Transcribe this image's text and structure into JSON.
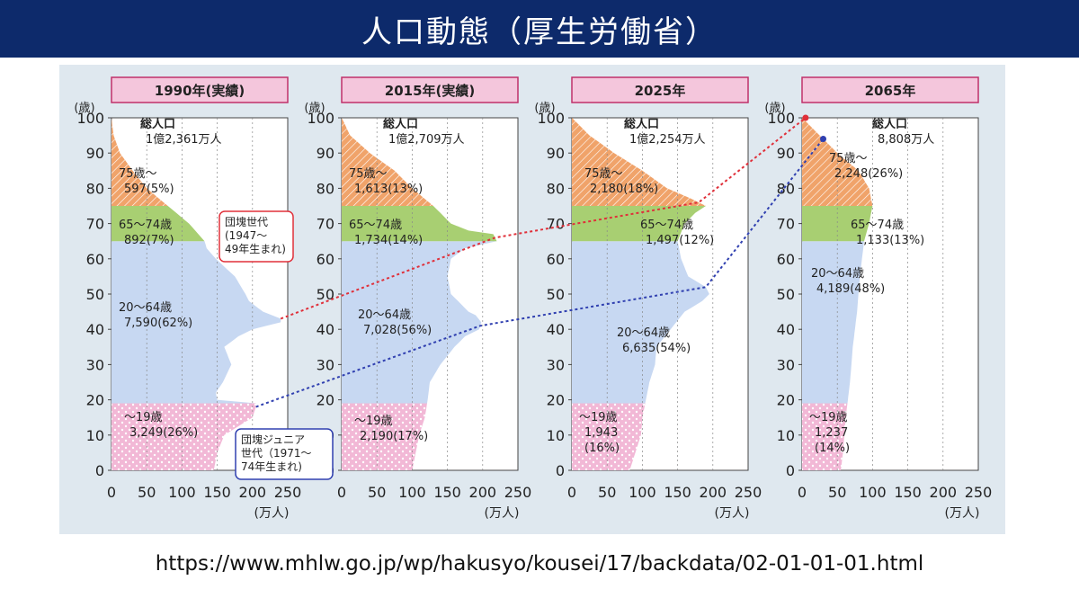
{
  "page": {
    "title": "人口動態（厚生労働省）",
    "source_url": "https://www.mhlw.go.jp/wp/hakusyo/kousei/17/backdata/02-01-01-01.html"
  },
  "colors": {
    "background": "#dfe8ef",
    "title_bg": "#0d2a6b",
    "age_75plus": "#f0a36a",
    "age_65_74": "#a8cf72",
    "age_20_64": "#c7d8f2",
    "age_0_19": "#f2b8d6",
    "header_fill": "#f4c6dc",
    "header_border": "#c0306a",
    "arrow_red": "#e0303a",
    "arrow_blue": "#3040b0"
  },
  "axis": {
    "y_unit": "(歳)",
    "x_unit": "(万人)",
    "y_ticks": [
      "0",
      "10",
      "20",
      "30",
      "40",
      "50",
      "60",
      "70",
      "80",
      "90",
      "100"
    ],
    "x_ticks": [
      "0",
      "50",
      "100",
      "150",
      "200",
      "250"
    ]
  },
  "chart_data": [
    {
      "type": "area",
      "header": "1990年(実績)",
      "total_label": "総人口",
      "total_value": "1億2,361万人",
      "ylim": [
        0,
        100
      ],
      "xlim": [
        0,
        250
      ],
      "groups": [
        {
          "key": "75plus",
          "label": "75歳～",
          "value": "597(5%)"
        },
        {
          "key": "65_74",
          "label": "65～74歳",
          "value": "892(7%)"
        },
        {
          "key": "20_64",
          "label": "20～64歳",
          "value": "7,590(62%)"
        },
        {
          "key": "0_19",
          "label": "～19歳",
          "value": "3,249(26%)"
        }
      ],
      "profile": [
        [
          0,
          145
        ],
        [
          5,
          150
        ],
        [
          10,
          160
        ],
        [
          15,
          200
        ],
        [
          18,
          205
        ],
        [
          19,
          205
        ],
        [
          20,
          150
        ],
        [
          22,
          148
        ],
        [
          25,
          158
        ],
        [
          30,
          170
        ],
        [
          35,
          160
        ],
        [
          38,
          180
        ],
        [
          40,
          200
        ],
        [
          42,
          240
        ],
        [
          43,
          240
        ],
        [
          45,
          215
        ],
        [
          48,
          195
        ],
        [
          50,
          190
        ],
        [
          55,
          175
        ],
        [
          60,
          148
        ],
        [
          63,
          135
        ],
        [
          65,
          132
        ],
        [
          70,
          110
        ],
        [
          75,
          80
        ],
        [
          80,
          50
        ],
        [
          85,
          30
        ],
        [
          90,
          12
        ],
        [
          95,
          3
        ],
        [
          100,
          0
        ]
      ]
    },
    {
      "type": "area",
      "header": "2015年(実績)",
      "total_label": "総人口",
      "total_value": "1億2,709万人",
      "ylim": [
        0,
        100
      ],
      "xlim": [
        0,
        250
      ],
      "groups": [
        {
          "key": "75plus",
          "label": "75歳～",
          "value": "1,613(13%)"
        },
        {
          "key": "65_74",
          "label": "65～74歳",
          "value": "1,734(14%)"
        },
        {
          "key": "20_64",
          "label": "20～64歳",
          "value": "7,028(56%)"
        },
        {
          "key": "0_19",
          "label": "～19歳",
          "value": "2,190(17%)"
        }
      ],
      "profile": [
        [
          0,
          100
        ],
        [
          5,
          105
        ],
        [
          10,
          110
        ],
        [
          15,
          118
        ],
        [
          20,
          122
        ],
        [
          25,
          125
        ],
        [
          30,
          140
        ],
        [
          35,
          160
        ],
        [
          38,
          175
        ],
        [
          40,
          195
        ],
        [
          42,
          198
        ],
        [
          44,
          190
        ],
        [
          45,
          180
        ],
        [
          50,
          155
        ],
        [
          55,
          150
        ],
        [
          60,
          155
        ],
        [
          63,
          175
        ],
        [
          65,
          220
        ],
        [
          67,
          215
        ],
        [
          68,
          180
        ],
        [
          70,
          155
        ],
        [
          73,
          140
        ],
        [
          75,
          130
        ],
        [
          80,
          100
        ],
        [
          85,
          75
        ],
        [
          90,
          40
        ],
        [
          95,
          12
        ],
        [
          100,
          0
        ]
      ]
    },
    {
      "type": "area",
      "header": "2025年",
      "total_label": "総人口",
      "total_value": "1億2,254万人",
      "ylim": [
        0,
        100
      ],
      "xlim": [
        0,
        250
      ],
      "groups": [
        {
          "key": "75plus",
          "label": "75歳～",
          "value": "2,180(18%)"
        },
        {
          "key": "65_74",
          "label": "65～74歳",
          "value": "1,497(12%)"
        },
        {
          "key": "20_64",
          "label": "20～64歳",
          "value": "6,635(54%)"
        },
        {
          "key": "0_19",
          "label": "～19歳",
          "value": "1,943\n(16%)"
        }
      ],
      "profile": [
        [
          0,
          82
        ],
        [
          5,
          90
        ],
        [
          10,
          98
        ],
        [
          15,
          100
        ],
        [
          20,
          105
        ],
        [
          25,
          110
        ],
        [
          30,
          118
        ],
        [
          35,
          120
        ],
        [
          40,
          140
        ],
        [
          45,
          160
        ],
        [
          48,
          185
        ],
        [
          50,
          195
        ],
        [
          52,
          190
        ],
        [
          55,
          165
        ],
        [
          60,
          155
        ],
        [
          65,
          150
        ],
        [
          70,
          160
        ],
        [
          73,
          175
        ],
        [
          75,
          190
        ],
        [
          77,
          170
        ],
        [
          80,
          135
        ],
        [
          85,
          100
        ],
        [
          90,
          60
        ],
        [
          95,
          25
        ],
        [
          100,
          0
        ]
      ]
    },
    {
      "type": "area",
      "header": "2065年",
      "total_label": "総人口",
      "total_value": "8,808万人",
      "ylim": [
        0,
        100
      ],
      "xlim": [
        0,
        250
      ],
      "groups": [
        {
          "key": "75plus",
          "label": "75歳～",
          "value": "2,248(26%)"
        },
        {
          "key": "65_74",
          "label": "65～74歳",
          "value": "1,133(13%)"
        },
        {
          "key": "20_64",
          "label": "20～64歳",
          "value": "4,189(48%)"
        },
        {
          "key": "0_19",
          "label": "～19歳",
          "value": "1,237\n(14%)"
        }
      ],
      "profile": [
        [
          0,
          55
        ],
        [
          5,
          58
        ],
        [
          10,
          60
        ],
        [
          15,
          62
        ],
        [
          20,
          65
        ],
        [
          25,
          68
        ],
        [
          30,
          70
        ],
        [
          35,
          72
        ],
        [
          40,
          75
        ],
        [
          45,
          78
        ],
        [
          50,
          80
        ],
        [
          55,
          82
        ],
        [
          60,
          85
        ],
        [
          65,
          88
        ],
        [
          70,
          95
        ],
        [
          75,
          100
        ],
        [
          80,
          95
        ],
        [
          85,
          80
        ],
        [
          90,
          50
        ],
        [
          95,
          25
        ],
        [
          100,
          0
        ]
      ]
    }
  ],
  "annotations": {
    "baby_boom": {
      "lines": [
        "団塊世代",
        "(1947～",
        "49年生まれ)"
      ],
      "points": [
        [
          0,
          1947,
          43
        ],
        [
          1,
          2015,
          66
        ],
        [
          2,
          2025,
          76
        ],
        [
          3,
          2065,
          100
        ]
      ]
    },
    "junior": {
      "lines": [
        "団塊ジュニア",
        "世代（1971～",
        "74年生まれ)"
      ],
      "points": [
        [
          0,
          1990,
          18
        ],
        [
          1,
          2015,
          41
        ],
        [
          2,
          2025,
          52
        ],
        [
          3,
          2065,
          94
        ]
      ]
    }
  }
}
